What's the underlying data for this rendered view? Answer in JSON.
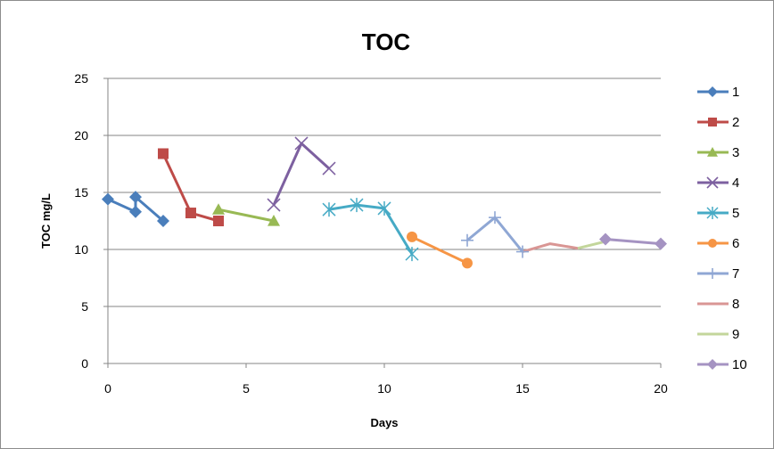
{
  "chart_data": {
    "type": "line",
    "title": "TOC",
    "xlabel": "Days",
    "ylabel": "TOC mg/L",
    "xlim": [
      0,
      20
    ],
    "ylim": [
      0,
      25
    ],
    "xticks": [
      0,
      5,
      10,
      15,
      20
    ],
    "yticks": [
      0,
      5,
      10,
      15,
      20,
      25
    ],
    "grid": "horizontal",
    "legend_position": "right",
    "series": [
      {
        "name": "1",
        "color": "#4a7ebb",
        "marker": "diamond",
        "x": [
          0,
          1,
          1,
          2
        ],
        "y": [
          14.4,
          13.3,
          14.6,
          12.5
        ]
      },
      {
        "name": "2",
        "color": "#be4b48",
        "marker": "square",
        "x": [
          2,
          3,
          4
        ],
        "y": [
          18.4,
          13.2,
          12.5
        ]
      },
      {
        "name": "3",
        "color": "#98b954",
        "marker": "triangle",
        "x": [
          4,
          6
        ],
        "y": [
          13.5,
          12.5
        ]
      },
      {
        "name": "4",
        "color": "#7d60a0",
        "marker": "x",
        "x": [
          6,
          7,
          8
        ],
        "y": [
          13.9,
          19.3,
          17.1
        ]
      },
      {
        "name": "5",
        "color": "#46aac5",
        "marker": "star",
        "x": [
          8,
          9,
          10,
          11
        ],
        "y": [
          13.5,
          13.9,
          13.6,
          9.6
        ]
      },
      {
        "name": "6",
        "color": "#f69545",
        "marker": "circle",
        "x": [
          11,
          13
        ],
        "y": [
          11.1,
          8.8
        ]
      },
      {
        "name": "7",
        "color": "#8fa7d4",
        "marker": "plus",
        "x": [
          13,
          14,
          15
        ],
        "y": [
          10.8,
          12.8,
          9.8
        ]
      },
      {
        "name": "8",
        "color": "#d99694",
        "marker": "none",
        "x": [
          15,
          16,
          17
        ],
        "y": [
          9.8,
          10.5,
          10.1
        ]
      },
      {
        "name": "9",
        "color": "#c3d69b",
        "marker": "none",
        "x": [
          17,
          18
        ],
        "y": [
          10.1,
          10.7
        ]
      },
      {
        "name": "10",
        "color": "#a593c2",
        "marker": "diamond",
        "x": [
          18,
          20
        ],
        "y": [
          10.9,
          10.5
        ]
      }
    ]
  }
}
